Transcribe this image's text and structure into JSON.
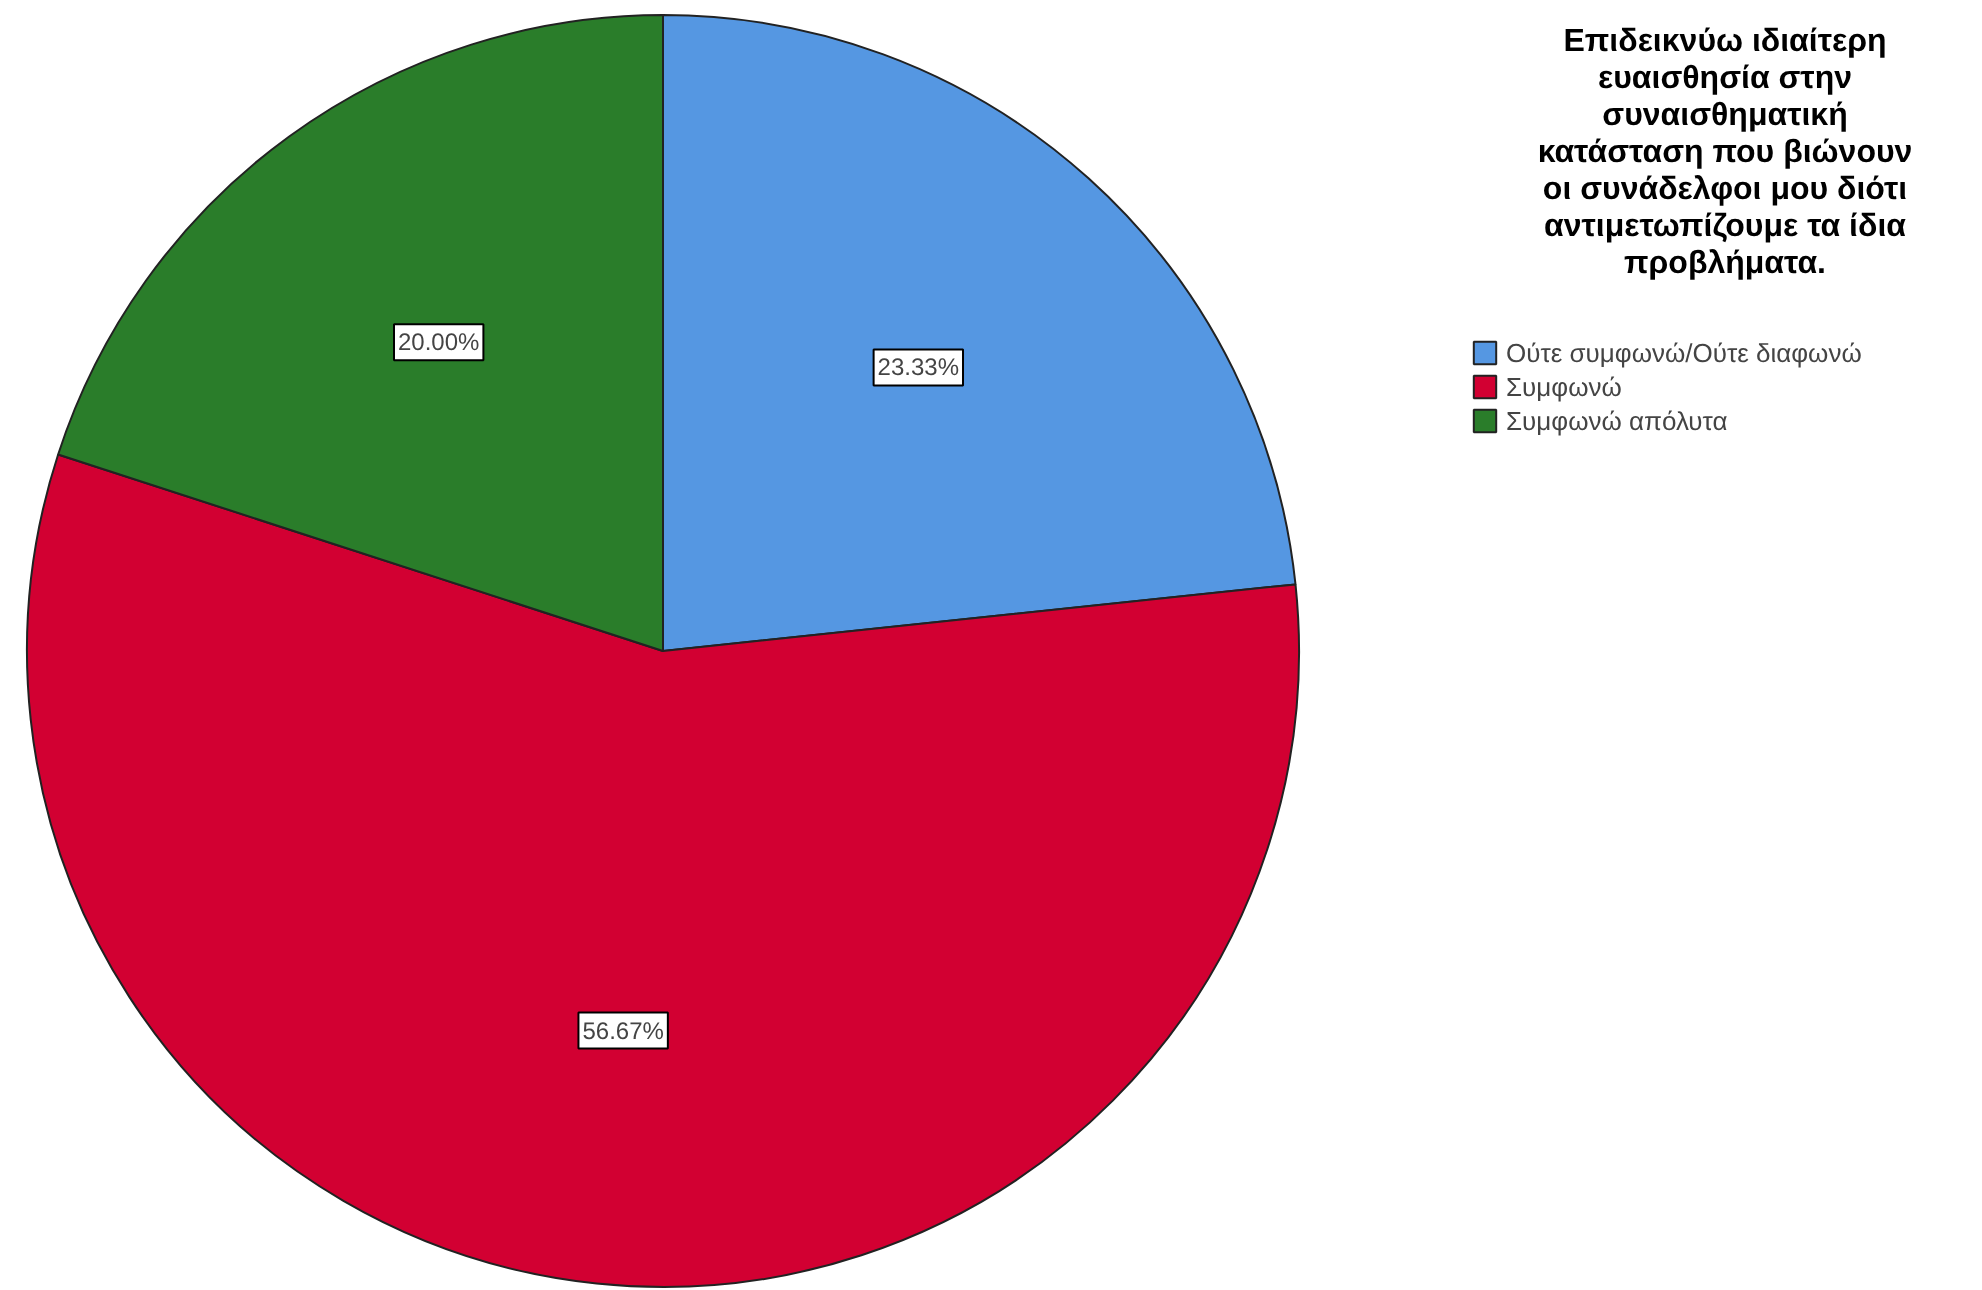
{
  "chart_data": {
    "type": "pie",
    "title": "Επιδεικνύω ιδιαίτερη ευαισθησία στην συναισθηματική κατάσταση που βιώνουν οι συνάδελφοι μου διότι αντιμετωπίζουμε τα ίδια προβλήματα.",
    "categories": [
      "Ούτε συμφωνώ/Ούτε διαφωνώ",
      "Συμφωνώ",
      "Συμφωνώ απόλυτα"
    ],
    "values": [
      23.33,
      56.67,
      20.0
    ],
    "value_labels": [
      "23.33%",
      "56.67%",
      "20.00%"
    ],
    "colors": [
      "#5597e2",
      "#d20032",
      "#2a7d2a"
    ],
    "legend": "right"
  }
}
